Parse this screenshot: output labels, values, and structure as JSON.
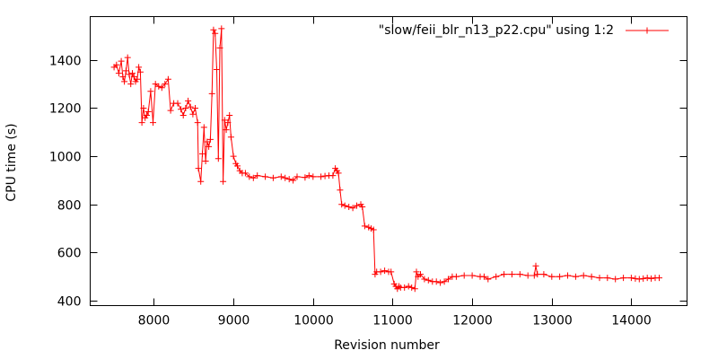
{
  "chart_data": {
    "type": "line",
    "xlabel": "Revision number",
    "ylabel": "CPU time (s)",
    "xlim": [
      7200,
      14700
    ],
    "ylim": [
      380,
      1580
    ],
    "xticks": [
      8000,
      9000,
      10000,
      11000,
      12000,
      13000,
      14000
    ],
    "yticks": [
      400,
      600,
      800,
      1000,
      1200,
      1400
    ],
    "grid": false,
    "legend_position": "top-right",
    "series": [
      {
        "name": "\"slow/feii_blr_n13_p22.cpu\" using 1:2",
        "color": "#ff0000",
        "marker": "plus",
        "points": [
          [
            7500,
            1370
          ],
          [
            7530,
            1380
          ],
          [
            7560,
            1345
          ],
          [
            7590,
            1395
          ],
          [
            7610,
            1330
          ],
          [
            7630,
            1310
          ],
          [
            7650,
            1355
          ],
          [
            7670,
            1410
          ],
          [
            7690,
            1340
          ],
          [
            7710,
            1300
          ],
          [
            7730,
            1345
          ],
          [
            7750,
            1330
          ],
          [
            7770,
            1310
          ],
          [
            7790,
            1320
          ],
          [
            7810,
            1370
          ],
          [
            7830,
            1350
          ],
          [
            7850,
            1140
          ],
          [
            7870,
            1200
          ],
          [
            7890,
            1160
          ],
          [
            7910,
            1170
          ],
          [
            7930,
            1185
          ],
          [
            7960,
            1270
          ],
          [
            7990,
            1140
          ],
          [
            8020,
            1300
          ],
          [
            8060,
            1290
          ],
          [
            8100,
            1285
          ],
          [
            8140,
            1300
          ],
          [
            8180,
            1320
          ],
          [
            8210,
            1190
          ],
          [
            8250,
            1220
          ],
          [
            8300,
            1220
          ],
          [
            8340,
            1195
          ],
          [
            8370,
            1170
          ],
          [
            8400,
            1200
          ],
          [
            8430,
            1230
          ],
          [
            8460,
            1205
          ],
          [
            8490,
            1175
          ],
          [
            8520,
            1200
          ],
          [
            8550,
            1140
          ],
          [
            8560,
            950
          ],
          [
            8590,
            895
          ],
          [
            8610,
            1010
          ],
          [
            8630,
            1120
          ],
          [
            8650,
            980
          ],
          [
            8670,
            1060
          ],
          [
            8690,
            1040
          ],
          [
            8710,
            1070
          ],
          [
            8730,
            1260
          ],
          [
            8750,
            1525
          ],
          [
            8770,
            1510
          ],
          [
            8790,
            1360
          ],
          [
            8810,
            990
          ],
          [
            8830,
            1450
          ],
          [
            8850,
            1530
          ],
          [
            8870,
            895
          ],
          [
            8890,
            1150
          ],
          [
            8910,
            1110
          ],
          [
            8930,
            1140
          ],
          [
            8950,
            1170
          ],
          [
            8970,
            1080
          ],
          [
            9000,
            1000
          ],
          [
            9030,
            970
          ],
          [
            9050,
            960
          ],
          [
            9080,
            940
          ],
          [
            9110,
            930
          ],
          [
            9150,
            930
          ],
          [
            9200,
            915
          ],
          [
            9250,
            910
          ],
          [
            9300,
            920
          ],
          [
            9400,
            915
          ],
          [
            9500,
            910
          ],
          [
            9600,
            915
          ],
          [
            9650,
            910
          ],
          [
            9700,
            905
          ],
          [
            9750,
            900
          ],
          [
            9800,
            915
          ],
          [
            9900,
            912
          ],
          [
            9950,
            920
          ],
          [
            10000,
            915
          ],
          [
            10100,
            915
          ],
          [
            10150,
            918
          ],
          [
            10200,
            920
          ],
          [
            10250,
            920
          ],
          [
            10280,
            950
          ],
          [
            10300,
            940
          ],
          [
            10320,
            930
          ],
          [
            10340,
            860
          ],
          [
            10360,
            800
          ],
          [
            10400,
            795
          ],
          [
            10450,
            790
          ],
          [
            10500,
            785
          ],
          [
            10550,
            795
          ],
          [
            10600,
            800
          ],
          [
            10620,
            790
          ],
          [
            10650,
            710
          ],
          [
            10700,
            705
          ],
          [
            10730,
            700
          ],
          [
            10760,
            695
          ],
          [
            10780,
            510
          ],
          [
            10800,
            520
          ],
          [
            10850,
            520
          ],
          [
            10900,
            525
          ],
          [
            10950,
            520
          ],
          [
            10980,
            520
          ],
          [
            11020,
            470
          ],
          [
            11040,
            460
          ],
          [
            11060,
            450
          ],
          [
            11080,
            460
          ],
          [
            11100,
            455
          ],
          [
            11150,
            455
          ],
          [
            11200,
            460
          ],
          [
            11240,
            455
          ],
          [
            11280,
            450
          ],
          [
            11300,
            520
          ],
          [
            11320,
            500
          ],
          [
            11350,
            510
          ],
          [
            11400,
            490
          ],
          [
            11450,
            485
          ],
          [
            11500,
            480
          ],
          [
            11550,
            480
          ],
          [
            11600,
            475
          ],
          [
            11650,
            480
          ],
          [
            11700,
            490
          ],
          [
            11750,
            500
          ],
          [
            11800,
            500
          ],
          [
            11900,
            505
          ],
          [
            12000,
            505
          ],
          [
            12100,
            500
          ],
          [
            12150,
            500
          ],
          [
            12200,
            490
          ],
          [
            12300,
            500
          ],
          [
            12400,
            510
          ],
          [
            12500,
            510
          ],
          [
            12600,
            510
          ],
          [
            12700,
            505
          ],
          [
            12780,
            505
          ],
          [
            12800,
            545
          ],
          [
            12820,
            510
          ],
          [
            12900,
            510
          ],
          [
            13000,
            500
          ],
          [
            13100,
            500
          ],
          [
            13200,
            505
          ],
          [
            13300,
            500
          ],
          [
            13400,
            505
          ],
          [
            13500,
            500
          ],
          [
            13600,
            495
          ],
          [
            13700,
            495
          ],
          [
            13800,
            490
          ],
          [
            13900,
            495
          ],
          [
            14000,
            495
          ],
          [
            14050,
            492
          ],
          [
            14100,
            490
          ],
          [
            14150,
            492
          ],
          [
            14200,
            495
          ],
          [
            14250,
            492
          ],
          [
            14300,
            495
          ],
          [
            14350,
            495
          ]
        ]
      }
    ]
  }
}
